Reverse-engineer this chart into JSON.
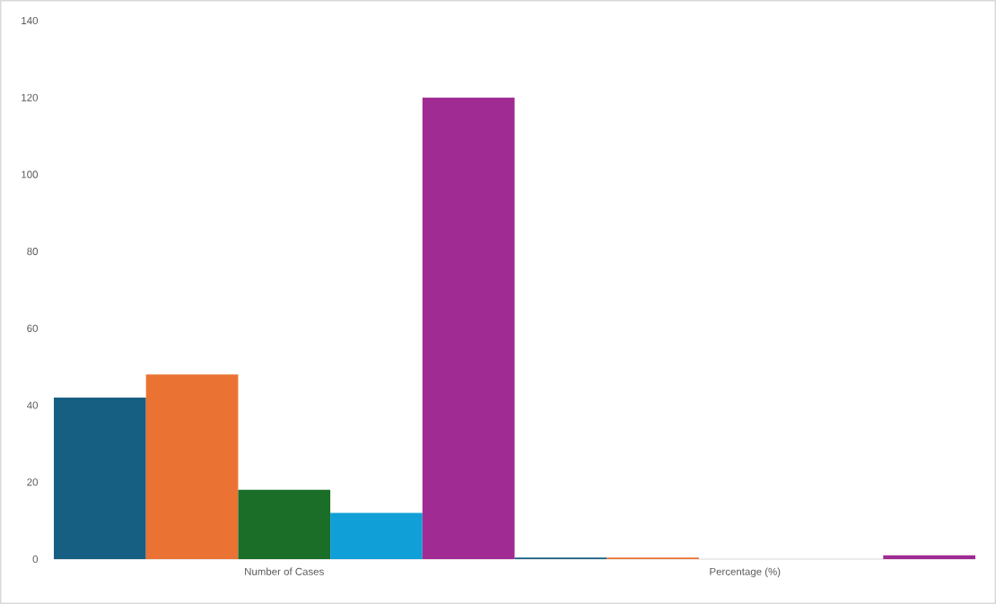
{
  "chart_data": {
    "type": "bar",
    "categories": [
      "Number of Cases",
      "Percentage (%)"
    ],
    "series": [
      {
        "color": "#175f82",
        "values": [
          42,
          0.4
        ]
      },
      {
        "color": "#ea7333",
        "values": [
          48,
          0.4
        ]
      },
      {
        "color": "#1b6e27",
        "values": [
          18,
          null
        ]
      },
      {
        "color": "#119fd8",
        "values": [
          12,
          null
        ]
      },
      {
        "color": "#a02b93",
        "values": [
          120,
          1
        ]
      }
    ],
    "ylim": [
      0,
      140
    ],
    "yticks": [
      0,
      20,
      40,
      60,
      80,
      100,
      120,
      140
    ],
    "grid": false
  }
}
